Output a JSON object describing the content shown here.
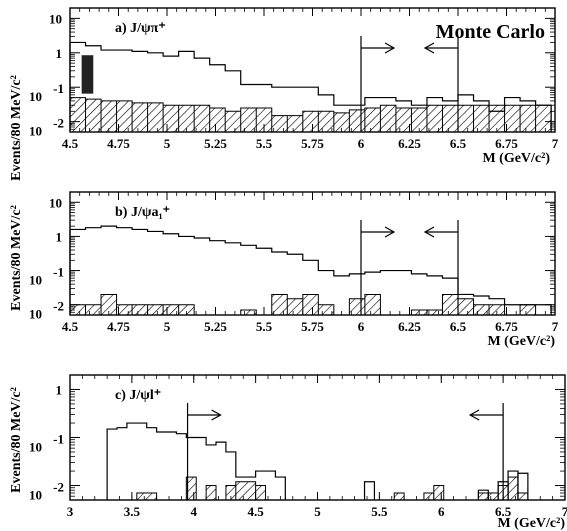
{
  "figure_label": "Monte Carlo",
  "ylabel": "Events/80 MeV/c²",
  "xlabel": "M (GeV/c²)",
  "chart_data": [
    {
      "type": "histogram",
      "label": "a) J/ψπ⁺",
      "xlim": [
        4.5,
        7.0
      ],
      "ylim": [
        0.005,
        20
      ],
      "log_y": true,
      "xticks": [
        "4.5",
        "4.75",
        "5",
        "5.25",
        "5.5",
        "5.75",
        "6",
        "6.25",
        "6.5",
        "6.75",
        "7"
      ],
      "yticks": [
        {
          "v": 10,
          "t": "10"
        },
        {
          "v": 1,
          "t": "1"
        },
        {
          "v": 0.1,
          "t": "-1",
          "exp": true
        },
        {
          "v": 0.01,
          "t": "-2",
          "exp": true
        }
      ],
      "bins": [
        4.5,
        4.58,
        4.66,
        4.74,
        4.82,
        4.9,
        4.98,
        5.06,
        5.14,
        5.22,
        5.3,
        5.38,
        5.46,
        5.54,
        5.62,
        5.7,
        5.78,
        5.86,
        5.94,
        6.02,
        6.1,
        6.18,
        6.26,
        6.34,
        6.42,
        6.5,
        6.58,
        6.66,
        6.74,
        6.82,
        6.9,
        6.98
      ],
      "open": [
        2.0,
        1.6,
        1.2,
        1.2,
        1.1,
        1.0,
        0.8,
        1.1,
        0.7,
        0.45,
        0.3,
        0.12,
        0.12,
        0.1,
        0.1,
        0.1,
        0.06,
        0.03,
        0.03,
        0.05,
        0.05,
        0.04,
        0.03,
        0.05,
        0.04,
        0.06,
        0.04,
        0.02,
        0.05,
        0.04,
        0.03
      ],
      "hatched": [
        0.05,
        0.045,
        0.04,
        0.04,
        0.035,
        0.035,
        0.03,
        0.03,
        0.03,
        0.025,
        0.02,
        0.025,
        0.025,
        0.015,
        0.015,
        0.02,
        0.02,
        0.018,
        0.022,
        0.025,
        0.03,
        0.025,
        0.025,
        0.03,
        0.03,
        0.03,
        0.03,
        0.03,
        0.03,
        0.03,
        0.03
      ],
      "solid_box": {
        "x": [
          4.56,
          4.62
        ],
        "y": [
          0.065,
          0.85
        ]
      },
      "window": {
        "from": 6.0,
        "to": 6.5
      }
    },
    {
      "type": "histogram",
      "label": "b) J/ψa₁⁺",
      "xlim": [
        4.5,
        7.0
      ],
      "ylim": [
        0.005,
        20
      ],
      "log_y": true,
      "xticks": [
        "4.5",
        "4.75",
        "5",
        "5.25",
        "5.5",
        "5.75",
        "6",
        "6.25",
        "6.5",
        "6.75",
        "7"
      ],
      "yticks": [
        {
          "v": 10,
          "t": "10"
        },
        {
          "v": 1,
          "t": "1"
        },
        {
          "v": 0.1,
          "t": "-1",
          "exp": true
        },
        {
          "v": 0.01,
          "t": "-2",
          "exp": true
        }
      ],
      "bins": [
        4.5,
        4.58,
        4.66,
        4.74,
        4.82,
        4.9,
        4.98,
        5.06,
        5.14,
        5.22,
        5.3,
        5.38,
        5.46,
        5.54,
        5.62,
        5.7,
        5.78,
        5.86,
        5.94,
        6.02,
        6.1,
        6.18,
        6.26,
        6.34,
        6.42,
        6.5,
        6.58,
        6.66,
        6.74,
        6.82,
        6.9,
        6.98
      ],
      "open": [
        1.6,
        1.8,
        2.0,
        1.8,
        1.6,
        1.4,
        1.2,
        1.0,
        0.9,
        0.75,
        0.65,
        0.55,
        0.45,
        0.35,
        0.3,
        0.2,
        0.1,
        0.07,
        0.08,
        0.09,
        0.1,
        0.1,
        0.08,
        0.07,
        0.06,
        0.02,
        0.018,
        0.015,
        0.01,
        0.01,
        0.01
      ],
      "hatched": [
        0.01,
        0.01,
        0.02,
        0.01,
        0.01,
        0.01,
        0.01,
        0.01,
        0,
        0,
        0,
        0.007,
        0,
        0.02,
        0.015,
        0.02,
        0.01,
        0,
        0.015,
        0.02,
        0,
        0,
        0.007,
        0.007,
        0.02,
        0.015,
        0.01,
        0.01,
        0,
        0.01,
        0
      ],
      "window": {
        "from": 6.0,
        "to": 6.5
      }
    },
    {
      "type": "histogram",
      "label": "c) J/ψl⁺",
      "xlim": [
        3.0,
        7.0
      ],
      "ylim": [
        0.005,
        2
      ],
      "log_y": true,
      "xticks": [
        "3",
        "3.5",
        "4",
        "4.5",
        "5",
        "5.5",
        "6",
        "6.5",
        "7"
      ],
      "yticks": [
        {
          "v": 1,
          "t": "1"
        },
        {
          "v": 0.1,
          "t": "-1",
          "exp": true
        },
        {
          "v": 0.01,
          "t": "-2",
          "exp": true
        }
      ],
      "bins": [
        3.3,
        3.38,
        3.46,
        3.54,
        3.62,
        3.7,
        3.78,
        3.86,
        3.94,
        4.02,
        4.1,
        4.18,
        4.26,
        4.34,
        4.42,
        4.5,
        4.58,
        4.66,
        4.74
      ],
      "open": [
        0.15,
        0.16,
        0.2,
        0.2,
        0.16,
        0.13,
        0.13,
        0.12,
        0.1,
        0.1,
        0.07,
        0.08,
        0.05,
        0.015,
        0.015,
        0.02,
        0.02,
        0.015
      ],
      "extra_open": [
        [
          5.38,
          5.46,
          0.012
        ],
        [
          6.3,
          6.38,
          0.008
        ],
        [
          6.46,
          6.54,
          0.012
        ],
        [
          6.54,
          6.62,
          0.02
        ],
        [
          6.62,
          6.7,
          0.018
        ]
      ],
      "hatched_bins": [
        [
          3.54,
          3.7,
          0.007
        ],
        [
          3.94,
          4.02,
          0.015
        ],
        [
          4.26,
          4.58,
          0.01
        ],
        [
          4.34,
          4.5,
          0.012
        ],
        [
          4.1,
          4.18,
          0.01
        ],
        [
          5.62,
          5.7,
          0.007
        ],
        [
          5.86,
          5.94,
          0.007
        ],
        [
          5.94,
          6.02,
          0.01
        ],
        [
          6.3,
          6.38,
          0.007
        ],
        [
          6.38,
          6.46,
          0.007
        ],
        [
          6.46,
          6.54,
          0.01
        ],
        [
          6.54,
          6.62,
          0.015
        ],
        [
          6.62,
          6.7,
          0.007
        ]
      ],
      "cut": {
        "from": 3.95,
        "to": 6.5
      }
    }
  ]
}
